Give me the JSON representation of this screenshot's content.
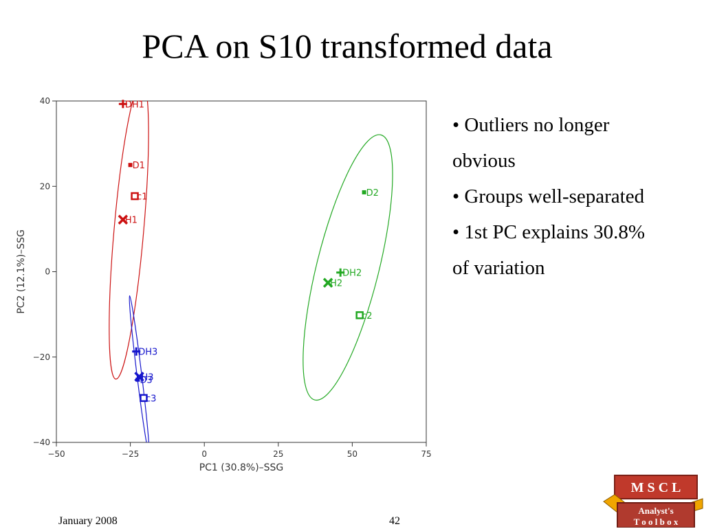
{
  "slide": {
    "title": "PCA on S10 transformed data",
    "bullets": [
      "• Outliers no longer",
      "obvious",
      "• Groups well-separated",
      "• 1st PC explains 30.8%",
      "of variation"
    ],
    "footer_date": "January 2008",
    "footer_page": "42"
  },
  "logo": {
    "line1": "M S C L",
    "line2": "Analyst's",
    "line3": "T o o l b o x",
    "colors": {
      "top": "#c0392b",
      "bottom": "#b03a2e",
      "accent": "#f0a500"
    }
  },
  "chart_data": {
    "type": "scatter",
    "title": "",
    "xlabel": "PC1 (30.8%)–SSG",
    "ylabel": "PC2 (12.1%)–SSG",
    "xlim": [
      -50,
      75
    ],
    "ylim": [
      -40,
      40
    ],
    "xticks": [
      -50,
      -25,
      0,
      25,
      50,
      75
    ],
    "yticks": [
      -40,
      -20,
      0,
      20,
      40
    ],
    "xtick_labels": [
      "−50",
      "−25",
      "0",
      "25",
      "50",
      "75"
    ],
    "ytick_labels": [
      "−40",
      "−20",
      "0",
      "20",
      "40"
    ],
    "grid": false,
    "series": [
      {
        "color": "#cc1111",
        "points": [
          {
            "label": "DH1",
            "marker": "plus",
            "x": -27.5,
            "y": 39.3
          },
          {
            "label": "D1",
            "marker": "dot",
            "x": -25.0,
            "y": 25.0
          },
          {
            "label": "c1",
            "marker": "square",
            "x": -23.5,
            "y": 17.7
          },
          {
            "label": "H1",
            "marker": "x",
            "x": -27.5,
            "y": 12.2
          }
        ],
        "ellipse": {
          "cx": -25.5,
          "cy": 9.7,
          "rx": 5.0,
          "ry": 35.0,
          "angle": 5
        }
      },
      {
        "color": "#1515cc",
        "points": [
          {
            "label": "DH3",
            "marker": "plus",
            "x": -23.0,
            "y": -18.7
          },
          {
            "label": "H3",
            "marker": "x",
            "x": -22.0,
            "y": -24.6
          },
          {
            "label": "D3",
            "marker": "dot",
            "x": -22.5,
            "y": -25.3
          },
          {
            "label": "c3",
            "marker": "square",
            "x": -20.5,
            "y": -29.6
          }
        ],
        "ellipse": {
          "cx": -22.0,
          "cy": -24.0,
          "rx": 0.8,
          "ry": 18.5,
          "angle": -7
        }
      },
      {
        "color": "#22a822",
        "points": [
          {
            "label": "D2",
            "marker": "dot",
            "x": 54.0,
            "y": 18.6
          },
          {
            "label": "DH2",
            "marker": "plus",
            "x": 46.0,
            "y": -0.2
          },
          {
            "label": "H2",
            "marker": "x",
            "x": 41.8,
            "y": -2.6
          },
          {
            "label": "c2",
            "marker": "square",
            "x": 52.5,
            "y": -10.2
          }
        ],
        "ellipse": {
          "cx": 48.5,
          "cy": 1.0,
          "rx": 10.5,
          "ry": 32.0,
          "angle": 14
        }
      }
    ]
  }
}
